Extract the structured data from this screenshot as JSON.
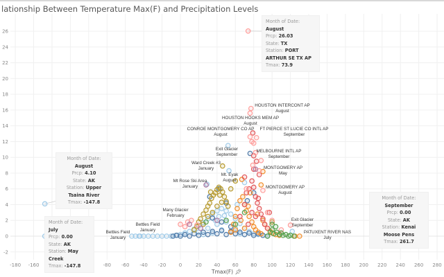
{
  "title": "lationship Between Temperature Max(F) and Precipitation Levels",
  "chart_data": {
    "type": "scatter",
    "xlabel": "Tmax(F)",
    "ylabel": "",
    "xlim": [
      -190,
      285
    ],
    "ylim": [
      -3,
      28
    ],
    "x_ticks": [
      -180,
      -160,
      -140,
      -120,
      -100,
      -80,
      -60,
      -40,
      -20,
      0,
      20,
      40,
      60,
      80,
      100,
      120,
      140,
      160,
      180,
      200,
      220,
      240,
      260,
      280
    ],
    "y_ticks": [
      -2,
      0,
      2,
      4,
      6,
      8,
      10,
      12,
      14,
      16,
      18,
      20,
      22,
      24,
      26
    ],
    "grid": true,
    "series": [
      {
        "color": "#a0cbe8",
        "points": [
          [
            -45,
            0
          ],
          [
            -40,
            0
          ],
          [
            -35,
            0
          ],
          [
            -30,
            0
          ],
          [
            -25,
            0
          ],
          [
            -20,
            0
          ],
          [
            -15,
            0
          ],
          [
            -10,
            0
          ],
          [
            -5,
            0.1
          ],
          [
            0,
            0.2
          ],
          [
            5,
            0.4
          ],
          [
            10,
            0.6
          ],
          [
            15,
            0.9
          ],
          [
            20,
            1.3
          ],
          [
            25,
            1.7
          ],
          [
            30,
            2.2
          ],
          [
            35,
            2.8
          ],
          [
            40,
            3.2
          ],
          [
            45,
            3.5
          ],
          [
            50,
            3.2
          ],
          [
            55,
            2.8
          ],
          [
            60,
            2.2
          ],
          [
            65,
            1.6
          ],
          [
            70,
            1.0
          ],
          [
            75,
            0.6
          ],
          [
            80,
            0.3
          ],
          [
            85,
            0.2
          ],
          [
            90,
            0.1
          ],
          [
            95,
            0
          ],
          [
            20,
            0.5
          ],
          [
            30,
            1.0
          ],
          [
            40,
            1.5
          ],
          [
            50,
            1.8
          ],
          [
            60,
            1.0
          ],
          [
            35,
            0.4
          ],
          [
            45,
            0.8
          ],
          [
            55,
            0.5
          ],
          [
            25,
            0.2
          ],
          [
            65,
            0.3
          ],
          [
            42,
            2.5
          ],
          [
            48,
            2.6
          ],
          [
            38,
            2.0
          ],
          [
            -53,
            0
          ],
          [
            -49,
            0
          ],
          [
            -44,
            0
          ],
          [
            52,
            11.5
          ],
          [
            53,
            8.3
          ],
          [
            29,
            6.6
          ],
          [
            122,
            0.6
          ],
          [
            -147.8,
            4.1
          ],
          [
            -147.8,
            0
          ],
          [
            261.7,
            0
          ],
          [
            62,
            4.0
          ],
          [
            70,
            6.8
          ]
        ]
      },
      {
        "color": "#4e79a7",
        "points": [
          [
            -8,
            0
          ],
          [
            -4,
            0.1
          ],
          [
            0,
            0
          ],
          [
            5,
            0.2
          ],
          [
            10,
            0
          ],
          [
            15,
            0.3
          ],
          [
            20,
            0.1
          ],
          [
            25,
            0.5
          ],
          [
            30,
            0.2
          ],
          [
            35,
            0.6
          ],
          [
            40,
            0.3
          ],
          [
            45,
            0.7
          ],
          [
            50,
            0.2
          ],
          [
            55,
            0.6
          ],
          [
            60,
            0.3
          ],
          [
            65,
            0.5
          ],
          [
            70,
            0.2
          ],
          [
            75,
            0.4
          ],
          [
            80,
            0.1
          ],
          [
            85,
            0.3
          ],
          [
            90,
            0.1
          ],
          [
            95,
            0
          ],
          [
            35,
            2.3
          ],
          [
            45,
            1.8
          ],
          [
            55,
            1.2
          ],
          [
            76,
            10.5
          ],
          [
            42,
            6.0
          ],
          [
            50,
            4.2
          ],
          [
            73,
            4.5
          ],
          [
            80,
            5.5
          ],
          [
            32,
            5.0
          ]
        ]
      },
      {
        "color": "#b6992d",
        "points": [
          [
            15,
            0.8
          ],
          [
            18,
            1.2
          ],
          [
            20,
            1.8
          ],
          [
            22,
            2.2
          ],
          [
            25,
            2.8
          ],
          [
            28,
            3.3
          ],
          [
            30,
            3.8
          ],
          [
            32,
            4.2
          ],
          [
            34,
            4.8
          ],
          [
            36,
            5.2
          ],
          [
            38,
            5.5
          ],
          [
            40,
            5.9
          ],
          [
            42,
            6.2
          ],
          [
            44,
            6.0
          ],
          [
            46,
            5.6
          ],
          [
            48,
            5.0
          ],
          [
            50,
            4.4
          ],
          [
            52,
            3.8
          ],
          [
            35,
            3.0
          ],
          [
            40,
            3.8
          ],
          [
            45,
            4.3
          ],
          [
            30,
            2.5
          ],
          [
            25,
            1.5
          ],
          [
            46,
            8.9
          ],
          [
            60,
            7.0
          ],
          [
            55,
            6.0
          ],
          [
            100,
            1.8
          ],
          [
            33,
            5.6
          ],
          [
            43,
            5.2
          ]
        ]
      },
      {
        "color": "#f28e2b",
        "points": [
          [
            55,
            0.5
          ],
          [
            58,
            1.5
          ],
          [
            60,
            2.5
          ],
          [
            62,
            3.5
          ],
          [
            65,
            4.5
          ],
          [
            68,
            5.0
          ],
          [
            70,
            4.0
          ],
          [
            72,
            3.2
          ],
          [
            75,
            2.5
          ],
          [
            78,
            1.8
          ],
          [
            80,
            1.2
          ],
          [
            82,
            0.8
          ],
          [
            85,
            0.5
          ],
          [
            88,
            0.3
          ],
          [
            90,
            2.0
          ],
          [
            92,
            1.5
          ],
          [
            95,
            1.0
          ],
          [
            98,
            0.6
          ],
          [
            100,
            0.4
          ],
          [
            104,
            0.2
          ],
          [
            108,
            0.1
          ],
          [
            66,
            2.0
          ],
          [
            74,
            3.8
          ],
          [
            84,
            2.8
          ],
          [
            70,
            1.0
          ],
          [
            60,
            0.8
          ],
          [
            90,
            8.2
          ],
          [
            88,
            6.5
          ],
          [
            125,
            0
          ],
          [
            130,
            0
          ],
          [
            76,
            5.5
          ],
          [
            67,
            7.2
          ]
        ]
      },
      {
        "color": "#e15759",
        "points": [
          [
            65,
            2.5
          ],
          [
            70,
            4.0
          ],
          [
            72,
            5.5
          ],
          [
            75,
            6.0
          ],
          [
            78,
            7.0
          ],
          [
            80,
            6.2
          ],
          [
            82,
            5.0
          ],
          [
            84,
            4.2
          ],
          [
            86,
            3.5
          ],
          [
            88,
            2.8
          ],
          [
            90,
            2.2
          ],
          [
            92,
            1.5
          ],
          [
            95,
            1.0
          ],
          [
            78,
            3.0
          ],
          [
            82,
            2.5
          ],
          [
            85,
            4.8
          ],
          [
            80,
            8.5
          ],
          [
            83,
            9.5
          ],
          [
            79,
            13.1
          ],
          [
            80,
            10.2
          ],
          [
            86,
            7.8
          ],
          [
            97,
            3.0
          ],
          [
            74,
            1.5
          ],
          [
            70,
            7.5
          ]
        ]
      },
      {
        "color": "#ff9d9a",
        "points": [
          [
            77,
            16.2
          ],
          [
            76,
            15.6
          ],
          [
            73.9,
            26.03
          ],
          [
            78,
            12.0
          ],
          [
            80,
            11.8
          ],
          [
            83,
            12.5
          ],
          [
            76,
            12.6
          ],
          [
            82,
            10.6
          ],
          [
            86,
            8.3
          ],
          [
            79,
            9.0
          ],
          [
            90,
            5.8
          ],
          [
            95,
            3.0
          ],
          [
            100,
            2.0
          ],
          [
            110,
            0.8
          ],
          [
            120,
            1.4
          ],
          [
            5,
            1.2
          ],
          [
            8,
            1.8
          ],
          [
            12,
            2.0
          ],
          [
            18,
            1.4
          ],
          [
            0,
            1.5
          ],
          [
            72,
            6.0
          ],
          [
            88,
            9.6
          ]
        ]
      },
      {
        "color": "#59a14f",
        "points": [
          [
            95,
            0
          ],
          [
            98,
            0.5
          ],
          [
            100,
            0.8
          ],
          [
            102,
            0.3
          ],
          [
            105,
            0.5
          ],
          [
            108,
            0.2
          ],
          [
            110,
            0.4
          ],
          [
            112,
            0.1
          ],
          [
            115,
            0.2
          ],
          [
            118,
            0
          ],
          [
            120,
            0.1
          ],
          [
            124,
            0
          ],
          [
            100,
            1.5
          ],
          [
            104,
            1.2
          ],
          [
            60,
            1.5
          ],
          [
            70,
            3.0
          ],
          [
            28,
            1.8
          ],
          [
            50,
            2.0
          ]
        ]
      },
      {
        "color": "#b07aa1",
        "points": [
          [
            10,
            1.5
          ],
          [
            28,
            6.5
          ],
          [
            40,
            2.0
          ],
          [
            82,
            8.5
          ],
          [
            22,
            1.0
          ]
        ]
      }
    ],
    "annotations": [
      {
        "text": [
          "HOUSTON INTERCONT AP",
          "August"
        ],
        "x": 77,
        "y": 16.2
      },
      {
        "text": [
          "HOUSTON HOOKS MEM AP",
          "August"
        ],
        "x": 76,
        "y": 15.6
      },
      {
        "text": [
          "CONROE MONTGOMERY CO AP",
          "August"
        ],
        "x": 76,
        "y": 12.6
      },
      {
        "text": [
          "FT PIERCE ST LUCIE CO INTL AP",
          "September"
        ],
        "x": 79,
        "y": 13.1
      },
      {
        "text": [
          "Exit Glacier",
          "September"
        ],
        "x": 52,
        "y": 11.5
      },
      {
        "text": [
          "MELBOURNE INTL AP",
          "September"
        ],
        "x": 76,
        "y": 10.5
      },
      {
        "text": [
          "Ward Creek #3",
          "January"
        ],
        "x": 46,
        "y": 8.9
      },
      {
        "text": [
          "MONTGOMERY AP",
          "May"
        ],
        "x": 90,
        "y": 8.2
      },
      {
        "text": [
          "Mt. Eyak",
          "August"
        ],
        "x": 53,
        "y": 8.3
      },
      {
        "text": [
          "Mt Rose Ski Area",
          "January"
        ],
        "x": 29,
        "y": 6.6
      },
      {
        "text": [
          "MONTGOMERY AP",
          "August"
        ],
        "x": 88,
        "y": 6.5
      },
      {
        "text": [
          "Many Glacier",
          "February"
        ],
        "x": 8,
        "y": 1.8
      },
      {
        "text": [
          "Bettles Field",
          "January"
        ],
        "x": -44,
        "y": 0
      },
      {
        "text": [
          "Bettles Field",
          "January"
        ],
        "x": -53,
        "y": 0
      },
      {
        "text": [
          "Exit Glacier",
          "September"
        ],
        "x": 122,
        "y": 0.6
      },
      {
        "text": [
          "PATUXENT RIVER NAS",
          "July"
        ],
        "x": 130,
        "y": 0
      }
    ],
    "tooltips": [
      {
        "month": "August",
        "prcp": "26.03",
        "state": "TX",
        "station": "PORT ARTHUR SE TX AP",
        "tmax": "73.9",
        "x": 73.9,
        "y": 26.03
      },
      {
        "month": "August",
        "prcp": "4.10",
        "state": "AK",
        "station": "Upper Tsaina River",
        "tmax": "-147.8",
        "x": -147.8,
        "y": 4.1
      },
      {
        "month": "July",
        "prcp": "0.00",
        "state": "AK",
        "station": "May Creek",
        "tmax": "-147.8",
        "x": -147.8,
        "y": 0
      },
      {
        "month": "September",
        "prcp": "0.00",
        "state": "AK",
        "station": "Kenai Moose Pens",
        "tmax": "261.7",
        "x": 261.7,
        "y": 0
      }
    ],
    "tooltip_labels": {
      "month": "Month of Date:",
      "prcp": "Prcp:",
      "state": "State:",
      "station": "Station:",
      "tmax": "Tmax:"
    }
  }
}
